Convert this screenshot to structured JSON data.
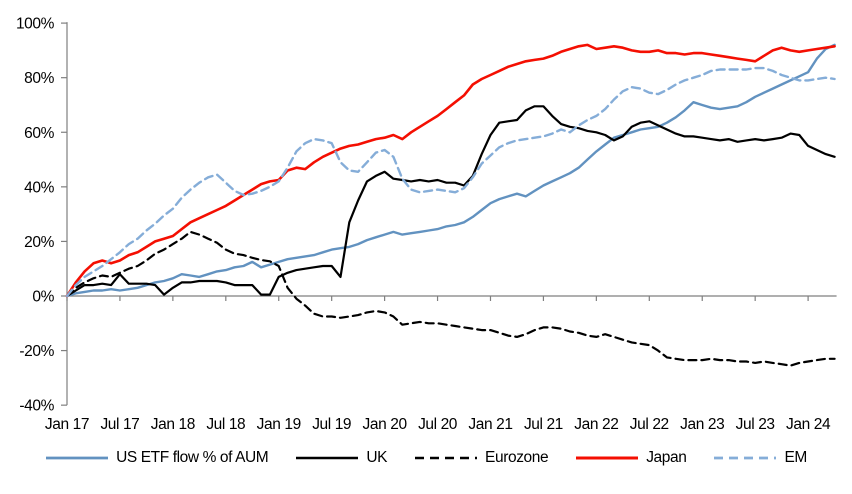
{
  "chart_data": {
    "type": "line",
    "title": "",
    "xlabel": "",
    "ylabel": "",
    "ylim": [
      -40,
      100
    ],
    "grid": false,
    "legend_position": "bottom",
    "x_start_label": "Jan 17",
    "x_end_label": "Apr 24",
    "x_interval": "monthly",
    "x_tick_labels": [
      "Jan 17",
      "Jul 17",
      "Jan 18",
      "Jul 18",
      "Jan 19",
      "Jul 19",
      "Jan 20",
      "Jul 20",
      "Jan 21",
      "Jul 21",
      "Jan 22",
      "Jul 22",
      "Jan 23",
      "Jul 23",
      "Jan 24"
    ],
    "y_tick_labels": [
      "100%",
      "80%",
      "60%",
      "40%",
      "20%",
      "0%",
      "-20%",
      "-40%"
    ],
    "y_tick_values": [
      100,
      80,
      60,
      40,
      20,
      0,
      -20,
      -40
    ],
    "unit": "%",
    "series": [
      {
        "name": "US ETF flow % of AUM",
        "color": "#6292c0",
        "style": "solid",
        "width": 2.4,
        "values": [
          0,
          1,
          1.5,
          2,
          2,
          2.5,
          2,
          2.5,
          3,
          4,
          5,
          5.5,
          6.5,
          8,
          7.5,
          7,
          8,
          9,
          9.5,
          10.5,
          11,
          12.5,
          10.5,
          11.5,
          12.5,
          13.5,
          14,
          14.5,
          15,
          16,
          17,
          17.5,
          18,
          19,
          20.5,
          21.5,
          22.5,
          23.5,
          22.5,
          23,
          23.5,
          24,
          24.5,
          25.5,
          26,
          27,
          29,
          31.5,
          34,
          35.5,
          36.5,
          37.5,
          36.5,
          38.5,
          40.5,
          42,
          43.5,
          45,
          47,
          50,
          53,
          55.5,
          58,
          59,
          60,
          61,
          61.5,
          62,
          63.5,
          65.5,
          68,
          71,
          70,
          69,
          68.5,
          69,
          69.5,
          71,
          73,
          74.5,
          76,
          77.5,
          79,
          80.5,
          82,
          87,
          90.5,
          92
        ]
      },
      {
        "name": "UK",
        "color": "#000000",
        "style": "solid",
        "width": 2.2,
        "values": [
          0,
          2,
          4,
          4,
          4.5,
          4,
          8,
          4.5,
          4.5,
          4.5,
          4,
          0.5,
          3,
          5,
          5,
          5.5,
          5.5,
          5.5,
          5,
          4,
          4,
          4,
          0.5,
          0.5,
          7,
          8.5,
          9.5,
          10,
          10.5,
          11,
          11,
          7,
          27,
          35,
          42,
          44,
          45.5,
          43,
          42.5,
          42,
          42.5,
          42,
          42.5,
          41.5,
          41.5,
          40.5,
          44,
          52,
          59,
          63.5,
          64,
          64.5,
          68,
          69.5,
          69.5,
          66,
          63,
          62,
          61.5,
          60.5,
          60,
          59,
          57,
          58.5,
          62,
          63.5,
          64,
          62.5,
          61,
          59.5,
          58.5,
          58.5,
          58,
          57.5,
          57,
          57.5,
          56.5,
          57,
          57.5,
          57,
          57.5,
          58,
          59.5,
          59,
          55,
          53.5,
          52,
          51
        ]
      },
      {
        "name": "Eurozone",
        "color": "#000000",
        "style": "dashed",
        "width": 2.2,
        "values": [
          0,
          3,
          5,
          6.5,
          7.5,
          7,
          8.5,
          10,
          11,
          13,
          15.5,
          17,
          19,
          21,
          23.5,
          22.5,
          21,
          19.5,
          17,
          15.5,
          15,
          14,
          13.2,
          12.7,
          11,
          3,
          -1,
          -3.5,
          -6.5,
          -7.5,
          -7.5,
          -8,
          -7.5,
          -7,
          -6,
          -5.5,
          -6,
          -7.5,
          -10.5,
          -10,
          -9.5,
          -10,
          -10,
          -10.5,
          -11,
          -11.5,
          -12,
          -12.5,
          -12.5,
          -13.5,
          -14.5,
          -15,
          -14,
          -12.5,
          -11.5,
          -11.5,
          -12,
          -13,
          -13.5,
          -14.5,
          -15,
          -14,
          -15,
          -16,
          -17,
          -17.5,
          -18,
          -20,
          -22.5,
          -23,
          -23.5,
          -23.5,
          -23.5,
          -23,
          -23.5,
          -23.5,
          -24,
          -24,
          -24.5,
          -24,
          -24.5,
          -25,
          -25.5,
          -24.5,
          -24,
          -23.5,
          -23,
          -23
        ]
      },
      {
        "name": "Japan",
        "color": "#f40f02",
        "style": "solid",
        "width": 2.6,
        "values": [
          0,
          5,
          9,
          12,
          13,
          12,
          13,
          15,
          16,
          18,
          20,
          21,
          22,
          24.5,
          27,
          28.5,
          30,
          31.5,
          33,
          35,
          37,
          39,
          41,
          42,
          42.5,
          46,
          47,
          46.5,
          49,
          51,
          52.5,
          54,
          55,
          55.5,
          56.5,
          57.5,
          58,
          59,
          57.5,
          60,
          62,
          64,
          66,
          68.5,
          71,
          73.5,
          77.5,
          79.5,
          81,
          82.5,
          84,
          85,
          86,
          86.5,
          87,
          88,
          89.5,
          90.5,
          91.5,
          92,
          90.5,
          91,
          91.5,
          91,
          90,
          89.5,
          89.5,
          90,
          89,
          89,
          88.5,
          89,
          89,
          88.5,
          88,
          87.5,
          87,
          86.5,
          86,
          88,
          90,
          91,
          90,
          89.5,
          90,
          90.5,
          91,
          91.5
        ]
      },
      {
        "name": "EM",
        "color": "#85add8",
        "style": "dashed",
        "width": 2.4,
        "values": [
          0,
          4,
          7,
          9,
          11,
          13.5,
          16,
          19,
          21,
          24,
          26.5,
          29.5,
          32,
          36,
          39,
          41.5,
          43.5,
          44.5,
          41.5,
          38.5,
          37,
          37.5,
          38.5,
          40,
          42,
          47,
          53,
          56,
          57.5,
          57,
          56,
          49,
          46,
          45.5,
          49,
          52.5,
          53.5,
          51,
          43,
          39,
          38,
          38.5,
          39,
          38.5,
          38,
          39.5,
          43.5,
          48.5,
          51.5,
          54.5,
          56,
          57,
          57.5,
          58,
          58.5,
          59.5,
          61,
          60,
          62.5,
          64.5,
          66,
          68.5,
          72,
          75,
          76.5,
          76,
          74.5,
          74,
          75.5,
          77.5,
          79,
          80,
          81,
          82.5,
          83,
          83,
          83,
          83,
          83.5,
          83.5,
          82.5,
          81,
          80,
          79,
          79,
          79.5,
          80,
          79.5
        ]
      }
    ]
  },
  "colors": {
    "axis": "#7f7f7f",
    "text": "#000000",
    "background": "#ffffff"
  }
}
